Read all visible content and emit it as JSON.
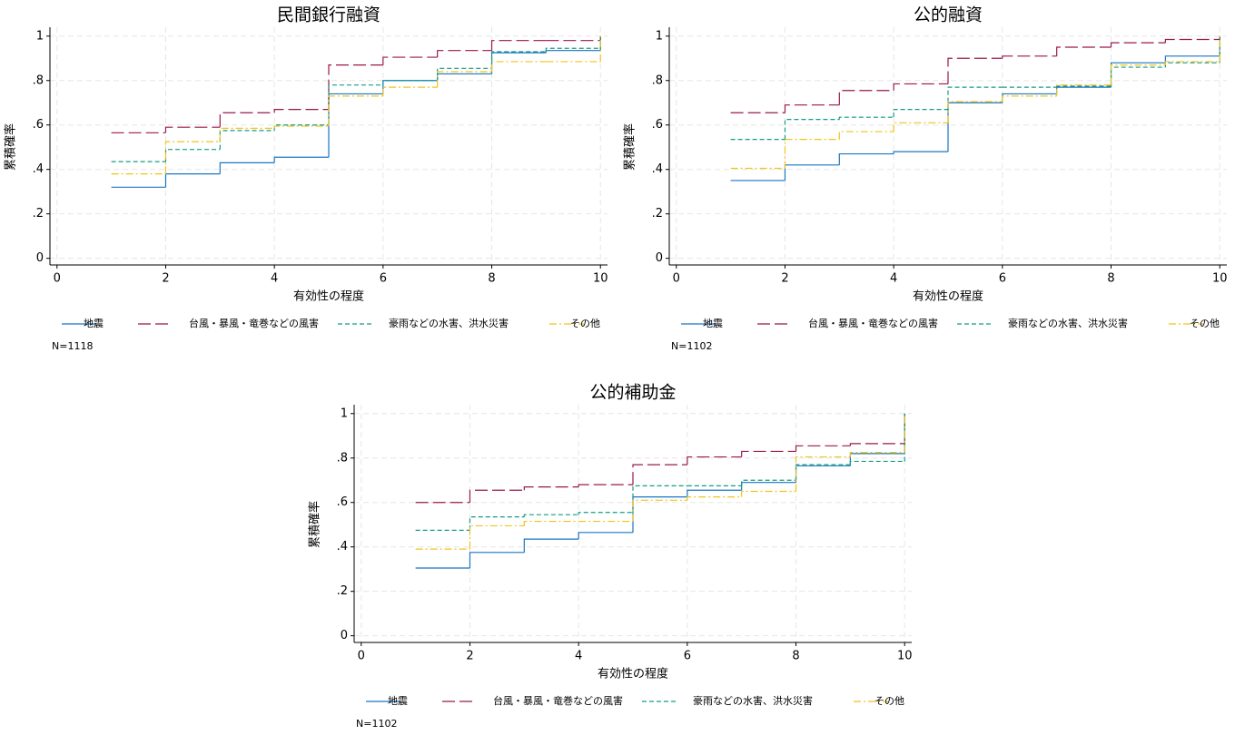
{
  "chart_data": [
    {
      "type": "step",
      "title": "民間銀行融資",
      "x_label": "有効性の程度",
      "y_label": "累積確率",
      "note": "N=1118",
      "x": [
        1,
        2,
        3,
        4,
        5,
        6,
        7,
        8,
        9,
        10
      ],
      "xlim": [
        -0.13,
        10.13
      ],
      "xticks": [
        0,
        2,
        4,
        6,
        8,
        10
      ],
      "ylim": [
        -0.03,
        1.04
      ],
      "yticks": [
        0,
        {
          "value": 0.2,
          "label": ".2"
        },
        {
          "value": 0.4,
          "label": ".4"
        },
        {
          "value": 0.6,
          "label": ".6"
        },
        {
          "value": 0.8,
          "label": ".8"
        },
        1
      ],
      "grid": true,
      "series": [
        {
          "name": "地震",
          "color": "#1a76c2",
          "dash": "solid",
          "values": [
            0.32,
            0.38,
            0.43,
            0.455,
            0.74,
            0.8,
            0.83,
            0.925,
            0.935,
            1.0
          ]
        },
        {
          "name": "台風・暴風・竜巻などの風害",
          "color": "#99184e",
          "dash": "longdash",
          "values": [
            0.565,
            0.59,
            0.655,
            0.67,
            0.87,
            0.905,
            0.935,
            0.98,
            0.98,
            1.0
          ]
        },
        {
          "name": "豪雨などの水害、洪水災害",
          "color": "#149c86",
          "dash": "dash",
          "values": [
            0.435,
            0.49,
            0.575,
            0.6,
            0.78,
            0.8,
            0.855,
            0.93,
            0.945,
            1.0
          ]
        },
        {
          "name": "その他",
          "color": "#f0c419",
          "dash": "dashdot",
          "values": [
            0.38,
            0.525,
            0.585,
            0.595,
            0.73,
            0.77,
            0.84,
            0.885,
            0.885,
            1.0
          ]
        }
      ]
    },
    {
      "type": "step",
      "title": "公的融資",
      "x_label": "有効性の程度",
      "y_label": "累積確率",
      "note": "N=1102",
      "x": [
        1,
        2,
        3,
        4,
        5,
        6,
        7,
        8,
        9,
        10
      ],
      "xlim": [
        -0.13,
        10.13
      ],
      "xticks": [
        0,
        2,
        4,
        6,
        8,
        10
      ],
      "ylim": [
        -0.03,
        1.04
      ],
      "yticks": [
        0,
        {
          "value": 0.2,
          "label": ".2"
        },
        {
          "value": 0.4,
          "label": ".4"
        },
        {
          "value": 0.6,
          "label": ".6"
        },
        {
          "value": 0.8,
          "label": ".8"
        },
        1
      ],
      "grid": true,
      "series": [
        {
          "name": "地震",
          "color": "#1a76c2",
          "dash": "solid",
          "values": [
            0.35,
            0.42,
            0.47,
            0.48,
            0.7,
            0.74,
            0.77,
            0.88,
            0.91,
            1.0
          ]
        },
        {
          "name": "台風・暴風・竜巻などの風害",
          "color": "#99184e",
          "dash": "longdash",
          "values": [
            0.655,
            0.69,
            0.755,
            0.785,
            0.9,
            0.91,
            0.95,
            0.97,
            0.985,
            1.0
          ]
        },
        {
          "name": "豪雨などの水害、洪水災害",
          "color": "#149c86",
          "dash": "dash",
          "values": [
            0.535,
            0.625,
            0.635,
            0.67,
            0.77,
            0.77,
            0.775,
            0.86,
            0.88,
            1.0
          ]
        },
        {
          "name": "その他",
          "color": "#f0c419",
          "dash": "dashdot",
          "values": [
            0.405,
            0.535,
            0.57,
            0.61,
            0.705,
            0.73,
            0.78,
            0.87,
            0.885,
            1.0
          ]
        }
      ]
    },
    {
      "type": "step",
      "title": "公的補助金",
      "x_label": "有効性の程度",
      "y_label": "累積確率",
      "note": "N=1102",
      "x": [
        1,
        2,
        3,
        4,
        5,
        6,
        7,
        8,
        9,
        10
      ],
      "xlim": [
        -0.13,
        10.13
      ],
      "xticks": [
        0,
        2,
        4,
        6,
        8,
        10
      ],
      "ylim": [
        -0.03,
        1.04
      ],
      "yticks": [
        0,
        {
          "value": 0.2,
          "label": ".2"
        },
        {
          "value": 0.4,
          "label": ".4"
        },
        {
          "value": 0.6,
          "label": ".6"
        },
        {
          "value": 0.8,
          "label": ".8"
        },
        1
      ],
      "grid": true,
      "series": [
        {
          "name": "地震",
          "color": "#1a76c2",
          "dash": "solid",
          "values": [
            0.305,
            0.375,
            0.435,
            0.465,
            0.625,
            0.655,
            0.69,
            0.765,
            0.82,
            1.0
          ]
        },
        {
          "name": "台風・暴風・竜巻などの風害",
          "color": "#99184e",
          "dash": "longdash",
          "values": [
            0.6,
            0.655,
            0.67,
            0.68,
            0.77,
            0.805,
            0.83,
            0.855,
            0.865,
            1.0
          ]
        },
        {
          "name": "豪雨などの水害、洪水災害",
          "color": "#149c86",
          "dash": "dash",
          "values": [
            0.475,
            0.535,
            0.545,
            0.555,
            0.675,
            0.675,
            0.7,
            0.77,
            0.785,
            1.0
          ]
        },
        {
          "name": "その他",
          "color": "#f0c419",
          "dash": "dashdot",
          "values": [
            0.39,
            0.495,
            0.515,
            0.515,
            0.61,
            0.625,
            0.65,
            0.805,
            0.825,
            1.0
          ]
        }
      ]
    }
  ]
}
